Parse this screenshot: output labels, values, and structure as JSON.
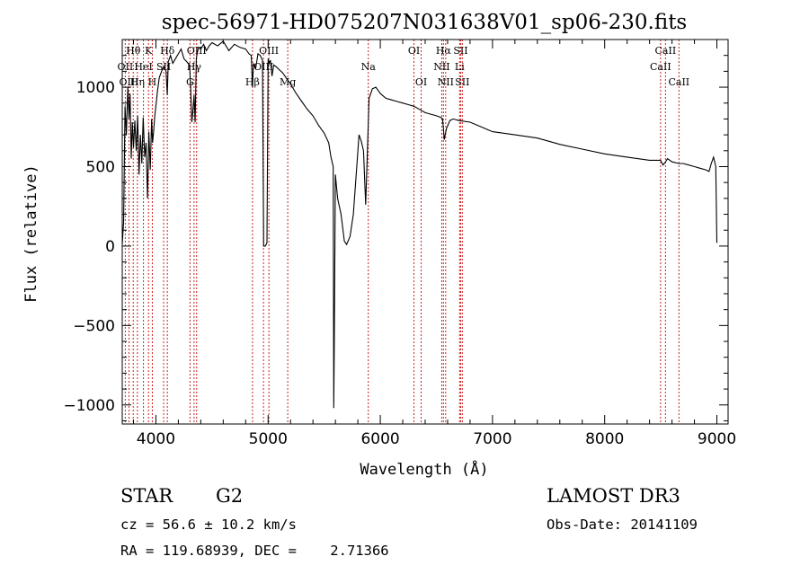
{
  "chart_data": {
    "type": "line",
    "title": "spec-56971-HD075207N031638V01_sp06-230.fits",
    "xlabel": "Wavelength (Å)",
    "ylabel": "Flux (relative)",
    "xlim": [
      3700,
      9100
    ],
    "ylim": [
      -1120,
      1300
    ],
    "xticks": [
      4000,
      5000,
      6000,
      7000,
      8000,
      9000
    ],
    "yticks": [
      -1000,
      -500,
      0,
      500,
      1000
    ],
    "series": [
      {
        "name": "spectrum",
        "x": [
          3700,
          3712,
          3725,
          3737,
          3750,
          3760,
          3770,
          3780,
          3790,
          3800,
          3812,
          3825,
          3837,
          3850,
          3862,
          3875,
          3887,
          3900,
          3912,
          3925,
          3937,
          3950,
          3962,
          3970,
          3980,
          3990,
          4000,
          4015,
          4030,
          4050,
          4070,
          4090,
          4101,
          4110,
          4130,
          4150,
          4175,
          4200,
          4225,
          4250,
          4275,
          4300,
          4310,
          4320,
          4330,
          4340,
          4350,
          4360,
          4370,
          4380,
          4400,
          4425,
          4450,
          4475,
          4500,
          4550,
          4600,
          4650,
          4700,
          4750,
          4800,
          4830,
          4850,
          4861,
          4870,
          4890,
          4910,
          4930,
          4950,
          4960,
          4975,
          4990,
          5000,
          5010,
          5020,
          5035,
          5050,
          5070,
          5100,
          5130,
          5160,
          5200,
          5250,
          5300,
          5350,
          5400,
          5450,
          5500,
          5540,
          5560,
          5580,
          5585,
          5590,
          5600,
          5620,
          5650,
          5680,
          5700,
          5730,
          5760,
          5790,
          5810,
          5830,
          5850,
          5870,
          5890,
          5900,
          5930,
          5960,
          6000,
          6050,
          6100,
          6150,
          6200,
          6250,
          6300,
          6350,
          6400,
          6450,
          6500,
          6540,
          6555,
          6563,
          6570,
          6590,
          6620,
          6650,
          6700,
          6800,
          6900,
          7000,
          7200,
          7400,
          7600,
          7800,
          8000,
          8200,
          8400,
          8498,
          8520,
          8542,
          8560,
          8600,
          8662,
          8700,
          8750,
          8800,
          8850,
          8900,
          8930,
          8950,
          8970,
          8990,
          9000
        ],
        "y": [
          10,
          150,
          880,
          700,
          1000,
          800,
          960,
          550,
          780,
          620,
          790,
          600,
          820,
          450,
          700,
          520,
          810,
          560,
          650,
          300,
          720,
          480,
          800,
          650,
          720,
          820,
          880,
          980,
          1060,
          1100,
          1130,
          1100,
          950,
          1160,
          1200,
          1150,
          1180,
          1210,
          1240,
          1180,
          1160,
          1140,
          1000,
          780,
          850,
          950,
          780,
          1180,
          1220,
          1250,
          1240,
          1270,
          1230,
          1260,
          1280,
          1260,
          1290,
          1230,
          1270,
          1250,
          1240,
          1210,
          1200,
          1000,
          1150,
          1120,
          1210,
          1200,
          1170,
          0,
          0,
          20,
          1180,
          1150,
          1170,
          1070,
          1140,
          1130,
          1110,
          1090,
          1060,
          1020,
          960,
          910,
          860,
          820,
          760,
          710,
          650,
          560,
          500,
          -1020,
          -600,
          450,
          300,
          200,
          30,
          10,
          60,
          200,
          500,
          700,
          660,
          600,
          260,
          700,
          930,
          990,
          1000,
          960,
          930,
          920,
          910,
          900,
          890,
          880,
          860,
          840,
          830,
          820,
          810,
          800,
          740,
          670,
          740,
          790,
          800,
          790,
          780,
          750,
          720,
          700,
          680,
          640,
          610,
          580,
          560,
          540,
          540,
          510,
          530,
          550,
          530,
          520,
          520,
          510,
          500,
          490,
          480,
          470,
          520,
          560,
          500,
          20
        ]
      }
    ],
    "lines": [
      {
        "label": "Hθ",
        "x": 3798,
        "row": 0
      },
      {
        "label": "OII",
        "x": 3727,
        "row": 1
      },
      {
        "label": "OIII",
        "x": 3760,
        "row": 2
      },
      {
        "label": "Hη",
        "x": 3835,
        "row": 2
      },
      {
        "label": "HeI",
        "x": 3889,
        "row": 1
      },
      {
        "label": "K",
        "x": 3934,
        "row": 0
      },
      {
        "label": "H",
        "x": 3968,
        "row": 2
      },
      {
        "label": "SII",
        "x": 4069,
        "row": 1
      },
      {
        "label": "Hδ",
        "x": 4102,
        "row": 0
      },
      {
        "label": "OIII",
        "x": 4363,
        "row": 0
      },
      {
        "label": "Hγ",
        "x": 4340,
        "row": 1
      },
      {
        "label": "G",
        "x": 4304,
        "row": 2
      },
      {
        "label": "Hβ",
        "x": 4861,
        "row": 2
      },
      {
        "label": "OIII",
        "x": 4959,
        "row": 1
      },
      {
        "label": "OIII",
        "x": 5007,
        "row": 0
      },
      {
        "label": "Mg",
        "x": 5175,
        "row": 2
      },
      {
        "label": "Na",
        "x": 5893,
        "row": 1
      },
      {
        "label": "OI",
        "x": 6300,
        "row": 0
      },
      {
        "label": "OI",
        "x": 6364,
        "row": 2
      },
      {
        "label": "Hα",
        "x": 6563,
        "row": 0
      },
      {
        "label": "NII",
        "x": 6548,
        "row": 1
      },
      {
        "label": "NII",
        "x": 6583,
        "row": 2
      },
      {
        "label": "SII",
        "x": 6716,
        "row": 0
      },
      {
        "label": "Li",
        "x": 6707,
        "row": 1
      },
      {
        "label": "SII",
        "x": 6731,
        "row": 2
      },
      {
        "label": "CaII",
        "x": 8542,
        "row": 0
      },
      {
        "label": "CaII",
        "x": 8498,
        "row": 1
      },
      {
        "label": "CaII",
        "x": 8662,
        "row": 2
      }
    ],
    "colors": {
      "line": "#000000",
      "marker": "#cc2222"
    }
  },
  "info": {
    "object_type": "STAR",
    "subclass": "G2",
    "survey": "LAMOST DR3",
    "redshift": "cz = 56.6 ± 10.2 km/s",
    "obs_date": "Obs-Date: 20141109",
    "coords": "RA = 119.68939, DEC =    2.71366"
  }
}
